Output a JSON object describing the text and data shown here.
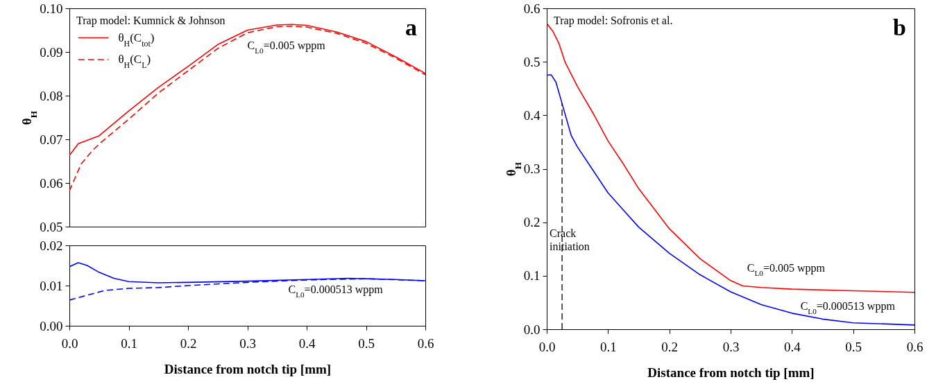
{
  "chart_data": [
    {
      "type": "line",
      "ylabel": "θ$_{H}$",
      "xlim": [
        0,
        0.6
      ],
      "ylim": [
        0.05,
        0.1
      ],
      "tick_labels": "y",
      "legend": "top left",
      "yticks": [
        {
          "value": 0.05,
          "label": "0.05"
        },
        {
          "value": 0.06,
          "label": "0.06"
        },
        {
          "value": 0.07,
          "label": "0.07"
        },
        {
          "value": 0.08,
          "label": "0.08"
        },
        {
          "value": 0.09,
          "label": "0.09"
        },
        {
          "value": 0.1,
          "label": "0.10"
        }
      ],
      "annotations": [
        "Trap model: Kumnick & Johnson",
        "a",
        "C$_{L0}$=0.005 wppm"
      ],
      "series": [
        {
          "name": "θ$_{H}$(C$_{tot}$)",
          "color": "#ff0000",
          "line_style": "solid",
          "x": [
            0,
            0.015,
            0.05,
            0.1,
            0.15,
            0.2,
            0.25,
            0.3,
            0.35,
            0.375,
            0.4,
            0.45,
            0.5,
            0.55,
            0.6
          ],
          "values": [
            0.0663,
            0.069,
            0.0708,
            0.0765,
            0.0819,
            0.0867,
            0.0917,
            0.095,
            0.0962,
            0.0963,
            0.0961,
            0.0946,
            0.0924,
            0.0889,
            0.0851
          ]
        },
        {
          "name": "θ$_{H}$(C$_{L}$)",
          "color": "#ff0000",
          "line_style": "dashed",
          "x": [
            0,
            0.01,
            0.02,
            0.04,
            0.05,
            0.1,
            0.15,
            0.2,
            0.25,
            0.3,
            0.35,
            0.375,
            0.4,
            0.45,
            0.5,
            0.55,
            0.6
          ],
          "values": [
            0.0582,
            0.0613,
            0.0644,
            0.0676,
            0.0689,
            0.0746,
            0.0806,
            0.0857,
            0.0908,
            0.0944,
            0.0958,
            0.0959,
            0.0957,
            0.0943,
            0.092,
            0.0886,
            0.0848
          ]
        }
      ]
    },
    {
      "type": "line",
      "xlabel": "Distance from notch tip [mm]",
      "xlim": [
        0,
        0.6
      ],
      "ylim": [
        0,
        0.02
      ],
      "yticks": [
        {
          "value": 0,
          "label": "0.00"
        },
        {
          "value": 0.01,
          "label": "0.01"
        },
        {
          "value": 0.02,
          "label": "0.02"
        }
      ],
      "xticks": [
        {
          "value": 0,
          "label": "0.0"
        },
        {
          "value": 0.1,
          "label": "0.1"
        },
        {
          "value": 0.2,
          "label": "0.2"
        },
        {
          "value": 0.3,
          "label": "0.3"
        },
        {
          "value": 0.4,
          "label": "0.4"
        },
        {
          "value": 0.5,
          "label": "0.5"
        },
        {
          "value": 0.6,
          "label": "0.6"
        }
      ],
      "annotations": [
        "C$_{L0}$=0.000513 wppm"
      ],
      "series": [
        {
          "color": "#0000ff",
          "line_style": "solid",
          "x": [
            0,
            0.015,
            0.03,
            0.05,
            0.075,
            0.1,
            0.15,
            0.2,
            0.3,
            0.4,
            0.47,
            0.5,
            0.55,
            0.6
          ],
          "values": [
            0.0147,
            0.0157,
            0.015,
            0.0133,
            0.0118,
            0.011,
            0.0107,
            0.0108,
            0.0111,
            0.0115,
            0.0118,
            0.0117,
            0.0115,
            0.0112
          ]
        },
        {
          "color": "#0000ff",
          "line_style": "dashed",
          "x": [
            0,
            0.03,
            0.06,
            0.1,
            0.15,
            0.2,
            0.3,
            0.4,
            0.5,
            0.6
          ],
          "values": [
            0.0064,
            0.0076,
            0.0088,
            0.0093,
            0.0095,
            0.01,
            0.0108,
            0.0114,
            0.0117,
            0.0112
          ]
        }
      ]
    },
    {
      "type": "line",
      "xlabel": "Distance from notch tip [mm]",
      "ylabel": "θ$_{H}$",
      "xlim": [
        0,
        0.6
      ],
      "ylim": [
        0,
        0.6
      ],
      "xticks": [
        {
          "value": 0,
          "label": "0.0"
        },
        {
          "value": 0.1,
          "label": "0.1"
        },
        {
          "value": 0.2,
          "label": "0.2"
        },
        {
          "value": 0.3,
          "label": "0.3"
        },
        {
          "value": 0.4,
          "label": "0.4"
        },
        {
          "value": 0.5,
          "label": "0.5"
        },
        {
          "value": 0.6,
          "label": "0.6"
        }
      ],
      "yticks": [
        {
          "value": 0,
          "label": "0.0"
        },
        {
          "value": 0.1,
          "label": "0.1"
        },
        {
          "value": 0.2,
          "label": "0.2"
        },
        {
          "value": 0.3,
          "label": "0.3"
        },
        {
          "value": 0.4,
          "label": "0.4"
        },
        {
          "value": 0.5,
          "label": "0.5"
        },
        {
          "value": 0.6,
          "label": "0.6"
        }
      ],
      "annotations": [
        "Trap model: Sofronis et al.",
        "b",
        "C$_{L0}$=0.005 wppm",
        "C$_{L0}$=0.000513 wppm"
      ],
      "ref_lines": [
        {
          "axis": "x",
          "value": 0.025,
          "label": "Crack initiation",
          "color": "#000000",
          "line_style": "dashed"
        }
      ],
      "series": [
        {
          "color": "#ff0000",
          "line_style": "solid",
          "x": [
            0,
            0.01,
            0.02,
            0.03,
            0.05,
            0.075,
            0.1,
            0.125,
            0.15,
            0.2,
            0.25,
            0.3,
            0.32,
            0.35,
            0.4,
            0.5,
            0.6
          ],
          "values": [
            0.572,
            0.557,
            0.534,
            0.499,
            0.454,
            0.405,
            0.352,
            0.309,
            0.263,
            0.188,
            0.132,
            0.091,
            0.081,
            0.078,
            0.075,
            0.072,
            0.069
          ]
        },
        {
          "color": "#0000ff",
          "line_style": "solid",
          "x": [
            0,
            0.007,
            0.015,
            0.025,
            0.04,
            0.05,
            0.075,
            0.1,
            0.125,
            0.15,
            0.2,
            0.25,
            0.3,
            0.35,
            0.4,
            0.45,
            0.5,
            0.6
          ],
          "values": [
            0.475,
            0.476,
            0.462,
            0.422,
            0.362,
            0.341,
            0.298,
            0.255,
            0.223,
            0.191,
            0.142,
            0.102,
            0.07,
            0.046,
            0.03,
            0.019,
            0.012,
            0.008
          ]
        }
      ]
    }
  ]
}
